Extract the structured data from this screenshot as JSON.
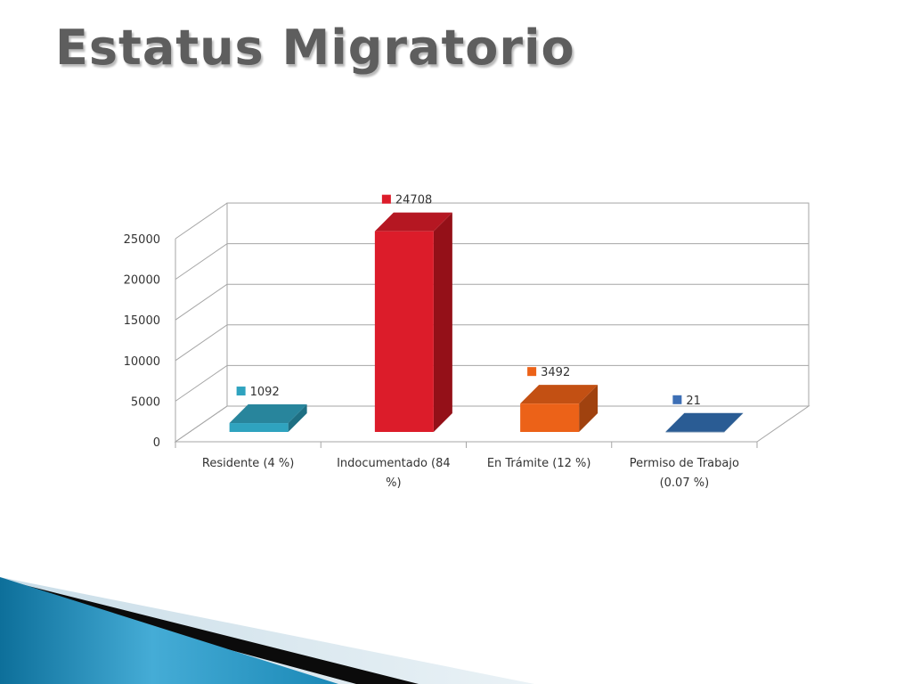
{
  "slide": {
    "title": "Estatus Migratorio"
  },
  "chart_data": {
    "type": "bar",
    "style": "3d-clustered-column",
    "categories": [
      "Residente (4 %)",
      "Indocumentado (84 %)",
      "En Trámite (12 %)",
      "Permiso de Trabajo (0.07 %)"
    ],
    "category_label_lines": [
      [
        "Residente (4 %)"
      ],
      [
        "Indocumentado (84",
        "%)"
      ],
      [
        "En Trámite (12 %)"
      ],
      [
        "Permiso de Trabajo",
        "(0.07 %)"
      ]
    ],
    "values": [
      1092,
      24708,
      3492,
      21
    ],
    "data_labels": [
      "1092",
      "24708",
      "3492",
      "21"
    ],
    "ylim": [
      0,
      25000
    ],
    "yticks": [
      0,
      5000,
      10000,
      15000,
      20000,
      25000
    ],
    "ytick_labels": [
      "0",
      "5000",
      "10000",
      "15000",
      "20000",
      "25000"
    ],
    "grid": true,
    "legend": "none",
    "colors": {
      "front": [
        "#2fa3bf",
        "#dc1c2a",
        "#ec6218",
        "#1f4d80"
      ],
      "top": [
        "#28859c",
        "#b51722",
        "#c35013",
        "#2a5c94"
      ],
      "side": [
        "#1e6f83",
        "#941018",
        "#a0420f",
        "#183d66"
      ],
      "marker": [
        "#2fa3bf",
        "#dc1c2a",
        "#ec6218",
        "#3d6fb5"
      ]
    }
  }
}
